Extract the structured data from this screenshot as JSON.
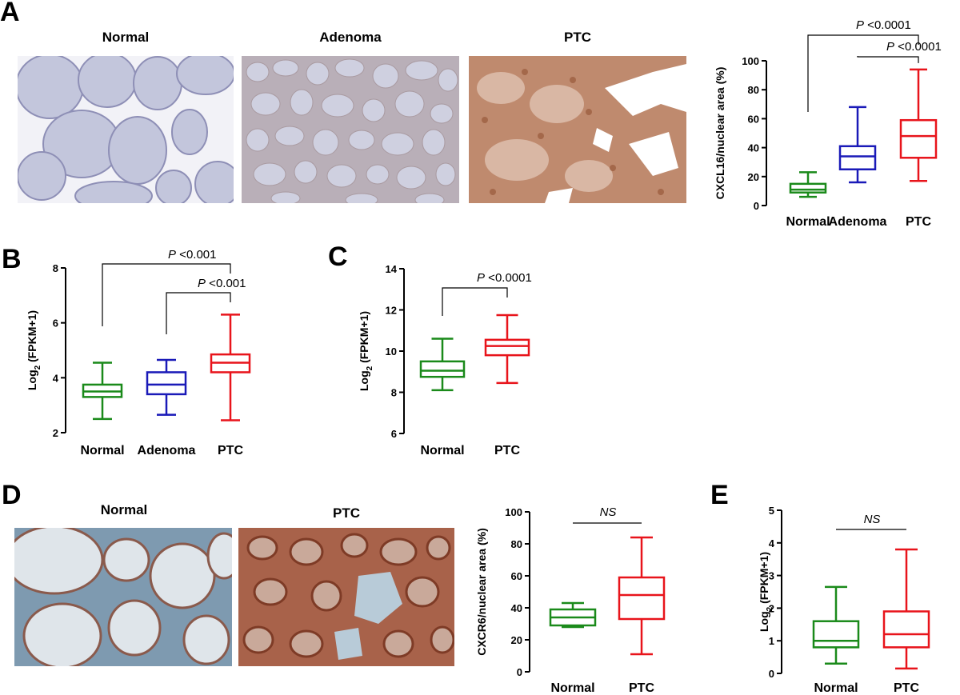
{
  "panels": {
    "A": {
      "letter": "A",
      "images": [
        {
          "title": "Normal",
          "stain": "normal"
        },
        {
          "title": "Adenoma",
          "stain": "adenoma"
        },
        {
          "title": "PTC",
          "stain": "ptc"
        }
      ]
    },
    "B": {
      "letter": "B"
    },
    "C": {
      "letter": "C"
    },
    "D": {
      "letter": "D",
      "images": [
        {
          "title": "Normal",
          "stain": "normal"
        },
        {
          "title": "PTC",
          "stain": "ptc"
        }
      ]
    },
    "E": {
      "letter": "E"
    }
  },
  "colors": {
    "Normal": "#1a8a1a",
    "Adenoma": "#1a1ab8",
    "PTC": "#e8141b"
  },
  "chart_data": [
    {
      "id": "A",
      "type": "boxplot",
      "ylabel": "CXCL16/nuclear area (%)",
      "ylabel_sub": "",
      "ylim": [
        0,
        100
      ],
      "yticks": [
        0,
        20,
        40,
        60,
        80,
        100
      ],
      "categories": [
        "Normal",
        "Adenoma",
        "PTC"
      ],
      "boxes": [
        {
          "name": "Normal",
          "min": 6,
          "q1": 9,
          "median": 11,
          "q3": 15,
          "max": 23
        },
        {
          "name": "Adenoma",
          "min": 16,
          "q1": 25,
          "median": 34,
          "q3": 41,
          "max": 68
        },
        {
          "name": "PTC",
          "min": 17,
          "q1": 33,
          "median": 48,
          "q3": 59,
          "max": 94
        }
      ],
      "significance": [
        {
          "from": 0,
          "to": 2,
          "p": "P",
          "text": " <0.0001"
        },
        {
          "from": 1,
          "to": 2,
          "p": "P",
          "text": " <0.0001"
        }
      ]
    },
    {
      "id": "B",
      "type": "boxplot",
      "ylabel": "Log",
      "ylabel_sub": "2",
      "ylabel_rest": " (FPKM+1)",
      "ylim": [
        2,
        8
      ],
      "yticks": [
        2,
        4,
        6,
        8
      ],
      "categories": [
        "Normal",
        "Adenoma",
        "PTC"
      ],
      "boxes": [
        {
          "name": "Normal",
          "min": 2.5,
          "q1": 3.3,
          "median": 3.5,
          "q3": 3.75,
          "max": 4.55
        },
        {
          "name": "Adenoma",
          "min": 2.65,
          "q1": 3.4,
          "median": 3.75,
          "q3": 4.2,
          "max": 4.65
        },
        {
          "name": "PTC",
          "min": 2.45,
          "q1": 4.2,
          "median": 4.55,
          "q3": 4.85,
          "max": 6.3
        }
      ],
      "significance": [
        {
          "from": 0,
          "to": 2,
          "p": "P",
          "text": " <0.001"
        },
        {
          "from": 1,
          "to": 2,
          "p": "P",
          "text": " <0.001"
        }
      ]
    },
    {
      "id": "C",
      "type": "boxplot",
      "ylabel": "Log",
      "ylabel_sub": "2",
      "ylabel_rest": " (FPKM+1)",
      "ylim": [
        6,
        14
      ],
      "yticks": [
        6,
        8,
        10,
        12,
        14
      ],
      "categories": [
        "Normal",
        "PTC"
      ],
      "boxes": [
        {
          "name": "Normal",
          "min": 8.1,
          "q1": 8.75,
          "median": 9.05,
          "q3": 9.5,
          "max": 10.6
        },
        {
          "name": "PTC",
          "min": 8.45,
          "q1": 9.8,
          "median": 10.25,
          "q3": 10.55,
          "max": 11.75
        }
      ],
      "significance": [
        {
          "from": 0,
          "to": 1,
          "p": "P",
          "text": " <0.0001"
        }
      ]
    },
    {
      "id": "D",
      "type": "boxplot",
      "ylabel": "CXCR6/nuclear area (%)",
      "ylabel_sub": "",
      "ylim": [
        0,
        100
      ],
      "yticks": [
        0,
        20,
        40,
        60,
        80,
        100
      ],
      "categories": [
        "Normal",
        "PTC"
      ],
      "boxes": [
        {
          "name": "Normal",
          "min": 28,
          "q1": 29,
          "median": 34,
          "q3": 39,
          "max": 43
        },
        {
          "name": "PTC",
          "min": 11,
          "q1": 33,
          "median": 48,
          "q3": 59,
          "max": 84
        }
      ],
      "significance": [
        {
          "from": 0,
          "to": 1,
          "p": "",
          "text": "NS"
        }
      ]
    },
    {
      "id": "E",
      "type": "boxplot",
      "ylabel": "Log",
      "ylabel_sub": "2",
      "ylabel_rest": " (FPKM+1)",
      "ylim": [
        0,
        5
      ],
      "yticks": [
        0,
        1,
        2,
        3,
        4,
        5
      ],
      "categories": [
        "Normal",
        "PTC"
      ],
      "boxes": [
        {
          "name": "Normal",
          "min": 0.3,
          "q1": 0.8,
          "median": 1.0,
          "q3": 1.6,
          "max": 2.65
        },
        {
          "name": "PTC",
          "min": 0.15,
          "q1": 0.8,
          "median": 1.2,
          "q3": 1.9,
          "max": 3.8
        }
      ],
      "significance": [
        {
          "from": 0,
          "to": 1,
          "p": "",
          "text": "NS"
        }
      ]
    }
  ]
}
